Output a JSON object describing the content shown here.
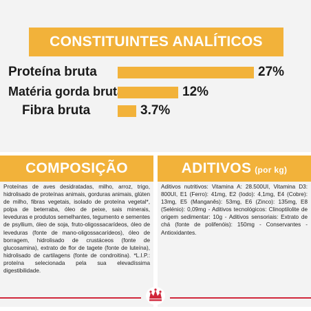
{
  "analytical": {
    "title": "CONSTITUINTES ANALÍTICOS",
    "rows": [
      {
        "label": "Proteína bruta",
        "value": "27%",
        "level": 27
      },
      {
        "label": "Matéria gorda bruta",
        "value": "12%",
        "level": 12
      },
      {
        "label": "Fibra bruta",
        "value": "3.7%",
        "level": 3.7
      }
    ]
  },
  "composition": {
    "title": "COMPOSIÇÃO",
    "text": "Proteínas de aves desidratadas, milho, arroz, trigo, hidrolisado de proteínas animais, gorduras animais, glúten de milho, fibras vegetais, isolado de proteína vegetal*, polpa de beterraba, óleo de peixe, sais minerais, leveduras e produtos semelhantes, tegumento e sementes de psyllium, óleo de soja, fruto-oligossacarídeos, óleo de leveduras (fonte de mano-oligossacarídeos), óleo de borragem, hidrolisado de crustáceos (fonte de glucosamina), extrato de flor de tagete (fonte de luteína), hidrolisado de cartilagens (fonte de condroitina). *L.I.P.: proteína selecionada pela sua elevadíssima digestibilidade."
  },
  "additives": {
    "title": "ADITIVOS",
    "subtitle": "(por kg)",
    "text": "Aditivos nutritivos: Vitamina A: 28.500UI, Vitamina D3: 800UI, E1 (Ferro): 41mg, E2 (Iodo): 4,1mg, E4 (Cobre): 13mg, E5 (Manganês): 53mg, E6 (Zinco): 135mg, E8 (Selénio): 0,09mg - Aditivos tecnológicos: Clinoptilolite de origem sedimentar: 10g - Aditivos sensoriais: Extrato de chá (fonte de polifenóis): 150mg - Conservantes - Antioxidantes."
  },
  "colors": {
    "accent": "#f2b23a",
    "panel": "#f3f3f3",
    "brand_red": "#d0263a"
  },
  "logo": {
    "icon": "royal-canin-crown-icon"
  }
}
